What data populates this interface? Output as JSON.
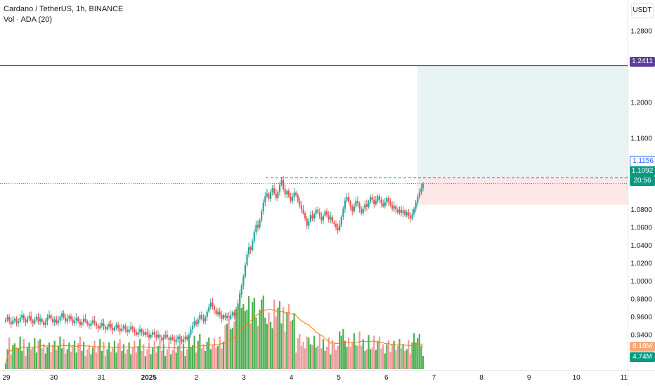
{
  "legend": {
    "title": "Cardano / TetherUS, 1h, BINANCE",
    "volume": "Vol · ADA (20)"
  },
  "currency_button": "USDT",
  "price_axis": {
    "ticks": [
      "1.2800",
      "1.2411",
      "1.2000",
      "1.1600",
      "1.1156",
      "1.1092",
      "1.0800",
      "1.0600",
      "1.0400",
      "1.0200",
      "1.0000",
      "0.9800",
      "0.9600",
      "0.9400"
    ],
    "grid_ticks": [
      "1.2800",
      "1.2000",
      "1.1600",
      "1.0800",
      "1.0600",
      "1.0400",
      "1.0200",
      "1.0000",
      "0.9800",
      "0.9600",
      "0.9400"
    ]
  },
  "time_axis": {
    "labels": [
      "29",
      "30",
      "31",
      "2025",
      "2",
      "3",
      "4",
      "5",
      "6",
      "7",
      "8",
      "9",
      "10",
      "11"
    ]
  },
  "tags": {
    "target": {
      "text": "1.2411",
      "bg": "#5b3d99",
      "fg": "#ffffff"
    },
    "entry": {
      "text": "1.1156",
      "bg": "#ffffff",
      "fg": "#2962ff",
      "border": "#2962ff"
    },
    "last": {
      "text": "1.1092",
      "countdown": "20:56",
      "bg": "#089981",
      "fg": "#ffffff"
    },
    "vol_ma": {
      "text": "8.18M",
      "bg": "#f7a57a",
      "fg": "#ffffff"
    },
    "vol": {
      "text": "4.74M",
      "bg": "#089981",
      "fg": "#ffffff"
    }
  },
  "colors": {
    "up": "#26a69a",
    "down": "#ef5350",
    "volume_up": "#4caf50",
    "volume_down": "#ef9a9a",
    "volume_ma": "#f57c00",
    "target_line": "#5b3d99",
    "resistance": "#3f51b5",
    "profit_zone": "#e7f4f1",
    "loss_zone": "#fde7e7"
  },
  "chart_data": {
    "type": "candlestick",
    "title": "Cardano / TetherUS, 1h, BINANCE",
    "y_range": [
      0.925,
      1.2935
    ],
    "x_range_days": [
      "Dec 28 2024",
      "Jan 11 2025"
    ],
    "levels": {
      "target": 1.2411,
      "resistance": 1.1156,
      "stop": 1.0855,
      "last": 1.1092
    },
    "position_box": {
      "start": "Jan 6 ~16:00",
      "entry": 1.1156,
      "target": 1.2411,
      "stop": 1.0855
    },
    "candles_close": [
      0.957,
      0.96,
      0.955,
      0.952,
      0.956,
      0.958,
      0.953,
      0.955,
      0.959,
      0.962,
      0.957,
      0.954,
      0.958,
      0.961,
      0.956,
      0.953,
      0.957,
      0.96,
      0.955,
      0.958,
      0.954,
      0.951,
      0.955,
      0.959,
      0.962,
      0.958,
      0.954,
      0.957,
      0.953,
      0.956,
      0.96,
      0.964,
      0.959,
      0.955,
      0.958,
      0.961,
      0.957,
      0.953,
      0.956,
      0.959,
      0.955,
      0.951,
      0.954,
      0.958,
      0.955,
      0.952,
      0.95,
      0.953,
      0.956,
      0.953,
      0.95,
      0.947,
      0.95,
      0.953,
      0.949,
      0.946,
      0.949,
      0.952,
      0.948,
      0.945,
      0.948,
      0.951,
      0.947,
      0.944,
      0.947,
      0.95,
      0.946,
      0.943,
      0.946,
      0.949,
      0.946,
      0.943,
      0.94,
      0.943,
      0.946,
      0.943,
      0.94,
      0.943,
      0.94,
      0.937,
      0.94,
      0.943,
      0.94,
      0.937,
      0.94,
      0.937,
      0.934,
      0.937,
      0.94,
      0.937,
      0.934,
      0.937,
      0.935,
      0.932,
      0.935,
      0.938,
      0.935,
      0.932,
      0.935,
      0.938,
      0.935,
      0.94,
      0.946,
      0.95,
      0.955,
      0.952,
      0.957,
      0.962,
      0.958,
      0.955,
      0.96,
      0.966,
      0.971,
      0.976,
      0.972,
      0.968,
      0.963,
      0.966,
      0.962,
      0.958,
      0.962,
      0.959,
      0.961,
      0.958,
      0.962,
      0.965,
      0.961,
      0.968,
      0.975,
      0.985,
      0.995,
      1.005,
      1.018,
      1.03,
      1.038,
      1.035,
      1.045,
      1.055,
      1.063,
      1.06,
      1.068,
      1.078,
      1.088,
      1.095,
      1.098,
      1.092,
      1.1,
      1.104,
      1.098,
      1.093,
      1.1,
      1.108,
      1.113,
      1.103,
      1.097,
      1.101,
      1.095,
      1.09,
      1.094,
      1.099,
      1.096,
      1.09,
      1.085,
      1.08,
      1.076,
      1.07,
      1.062,
      1.067,
      1.074,
      1.07,
      1.075,
      1.08,
      1.077,
      1.072,
      1.068,
      1.073,
      1.078,
      1.074,
      1.069,
      1.072,
      1.066,
      1.064,
      1.06,
      1.057,
      1.063,
      1.072,
      1.081,
      1.09,
      1.094,
      1.089,
      1.083,
      1.078,
      1.084,
      1.09,
      1.087,
      1.081,
      1.076,
      1.081,
      1.086,
      1.083,
      1.089,
      1.094,
      1.091,
      1.086,
      1.09,
      1.095,
      1.091,
      1.087,
      1.084,
      1.088,
      1.093,
      1.089,
      1.085,
      1.081,
      1.084,
      1.08,
      1.077,
      1.08,
      1.076,
      1.079,
      1.074,
      1.077,
      1.073,
      1.07,
      1.075,
      1.081,
      1.088,
      1.094,
      1.099,
      1.104,
      1.109
    ],
    "volume_max_millions": 30,
    "volume_current_millions": 4.74,
    "volume_ma_current_millions": 8.18
  }
}
